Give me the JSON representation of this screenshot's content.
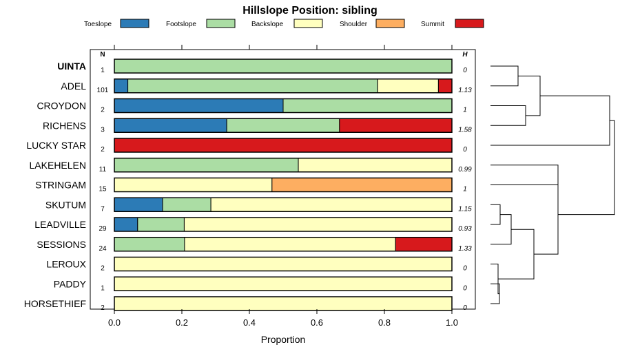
{
  "chart_data": {
    "type": "bar",
    "subtype": "stacked-horizontal-with-dendrogram",
    "title": "Hillslope Position: sibling",
    "xlabel": "Proportion",
    "xlim": [
      0,
      1
    ],
    "xticks": [
      "0.0",
      "0.2",
      "0.4",
      "0.6",
      "0.8",
      "1.0"
    ],
    "xtick_values": [
      0,
      0.2,
      0.4,
      0.6,
      0.8,
      1.0
    ],
    "n_header": "N",
    "h_header": "H",
    "legend": [
      {
        "name": "Toeslope",
        "color": "#2c7bb6"
      },
      {
        "name": "Footslope",
        "color": "#abdda4"
      },
      {
        "name": "Backslope",
        "color": "#ffffbf"
      },
      {
        "name": "Shoulder",
        "color": "#fdae61"
      },
      {
        "name": "Summit",
        "color": "#d7191c"
      }
    ],
    "categories": [
      "UINTA",
      "ADEL",
      "CROYDON",
      "RICHENS",
      "LUCKY STAR",
      "LAKEHELEN",
      "STRINGAM",
      "SKUTUM",
      "LEADVILLE",
      "SESSIONS",
      "LEROUX",
      "PADDY",
      "HORSETHIEF"
    ],
    "highlight": "UINTA",
    "n": [
      "1",
      "101",
      "2",
      "3",
      "2",
      "11",
      "15",
      "7",
      "29",
      "24",
      "2",
      "1",
      "2"
    ],
    "h": [
      "0",
      "1.13",
      "1",
      "1.58",
      "0",
      "0.99",
      "1",
      "1.15",
      "0.93",
      "1.33",
      "0",
      "0",
      "0"
    ],
    "series": [
      {
        "name": "Toeslope",
        "values": [
          0,
          0.04,
          0.5,
          0.333,
          0,
          0,
          0,
          0.143,
          0.069,
          0,
          0,
          0,
          0
        ]
      },
      {
        "name": "Footslope",
        "values": [
          1,
          0.74,
          0.5,
          0.334,
          0,
          0.545,
          0,
          0.143,
          0.138,
          0.208,
          0,
          0,
          0
        ]
      },
      {
        "name": "Backslope",
        "values": [
          0,
          0.18,
          0,
          0,
          0,
          0.455,
          0.467,
          0.714,
          0.793,
          0.625,
          1,
          1,
          1
        ]
      },
      {
        "name": "Shoulder",
        "values": [
          0,
          0,
          0,
          0,
          0,
          0,
          0.533,
          0,
          0,
          0,
          0,
          0,
          0
        ]
      },
      {
        "name": "Summit",
        "values": [
          0,
          0.04,
          0,
          0.333,
          1,
          0,
          0,
          0,
          0,
          0.167,
          0,
          0,
          0
        ]
      }
    ]
  }
}
